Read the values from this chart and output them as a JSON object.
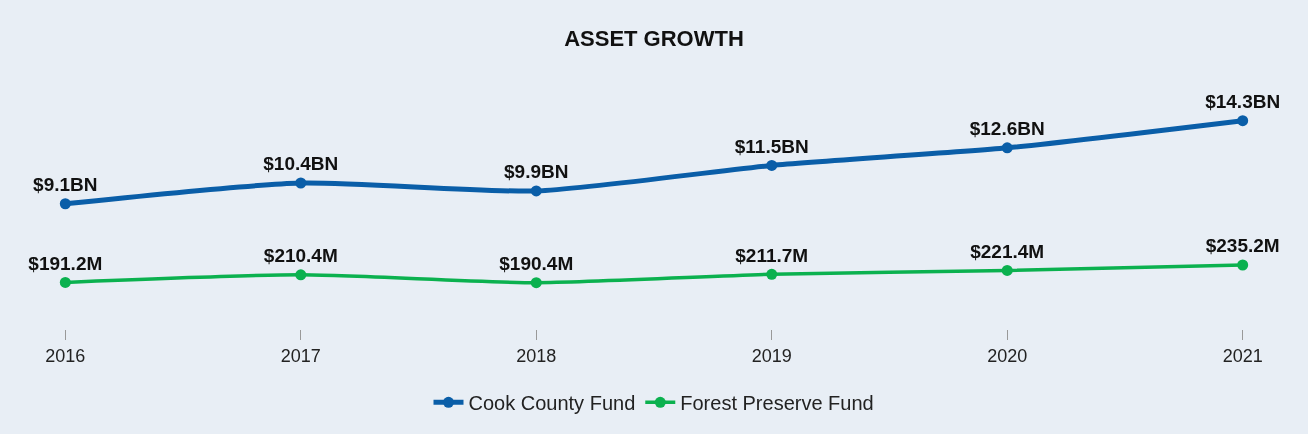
{
  "chart_data": [
    {
      "type": "line",
      "title": "ASSET GROWTH",
      "categories": [
        "2016",
        "2017",
        "2018",
        "2019",
        "2020",
        "2021"
      ],
      "series": [
        {
          "name": "Cook County Fund",
          "color": "#0a5ea8",
          "values": [
            9.1,
            10.4,
            9.9,
            11.5,
            12.6,
            14.3
          ],
          "value_labels": [
            "$9.1BN",
            "$10.4BN",
            "$9.9BN",
            "$11.5BN",
            "$12.6BN",
            "$14.3BN"
          ]
        }
      ],
      "tick_labels": false,
      "legend": "bottom",
      "marker": "circle",
      "line_style": "solid"
    },
    {
      "type": "line",
      "categories": [
        "2016",
        "2017",
        "2018",
        "2019",
        "2020",
        "2021"
      ],
      "series": [
        {
          "name": "Forest Preserve Fund",
          "color": "#0bb14f",
          "values": [
            191.2,
            210.4,
            190.4,
            211.7,
            221.4,
            235.2
          ],
          "value_labels": [
            "$191.2M",
            "$210.4M",
            "$190.4M",
            "$211.7M",
            "$221.4M",
            "$235.2M"
          ]
        }
      ],
      "tick_labels": "x",
      "legend": "bottom",
      "marker": "circle",
      "line_style": "solid"
    }
  ]
}
